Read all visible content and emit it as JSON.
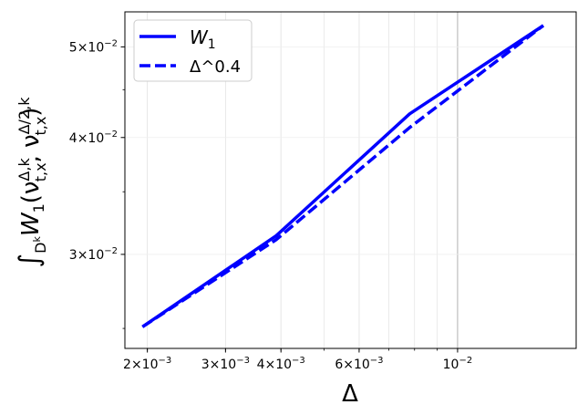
{
  "chart_data": {
    "type": "line",
    "xscale": "log",
    "yscale": "log",
    "xlabel": "Δ",
    "ylabel": "∫_{D^k} W_1(ν_{t,x}^{Δ,k}, ν_{t,x}^{Δ/2,k})",
    "xlim": [
      0.00178,
      0.0185
    ],
    "ylim": [
      0.0238,
      0.0545
    ],
    "grid": true,
    "legend_position": "top-left",
    "x_ticks": [
      {
        "value": 0.002,
        "base": "2×10",
        "exp": "−3"
      },
      {
        "value": 0.003,
        "base": "3×10",
        "exp": "−3"
      },
      {
        "value": 0.004,
        "base": "4×10",
        "exp": "−3"
      },
      {
        "value": 0.006,
        "base": "6×10",
        "exp": "−3"
      },
      {
        "value": 0.01,
        "base": "10",
        "exp": "−2"
      }
    ],
    "y_ticks": [
      {
        "value": 0.03,
        "base": "3×10",
        "exp": "−2"
      },
      {
        "value": 0.04,
        "base": "4×10",
        "exp": "−2"
      },
      {
        "value": 0.05,
        "base": "5×10",
        "exp": "−2"
      }
    ],
    "series": [
      {
        "name": "W_1",
        "color": "#0000ff",
        "style": "solid",
        "x": [
          0.00195,
          0.0039,
          0.0078,
          0.0156
        ],
        "y": [
          0.0251,
          0.0314,
          0.0424,
          0.0527
        ]
      },
      {
        "name": "Δ^0.4",
        "color": "#0000ff",
        "style": "dashed",
        "x": [
          0.00195,
          0.0039,
          0.0078,
          0.0156
        ],
        "y": [
          0.0251,
          0.0311,
          0.041,
          0.0527
        ]
      }
    ]
  }
}
